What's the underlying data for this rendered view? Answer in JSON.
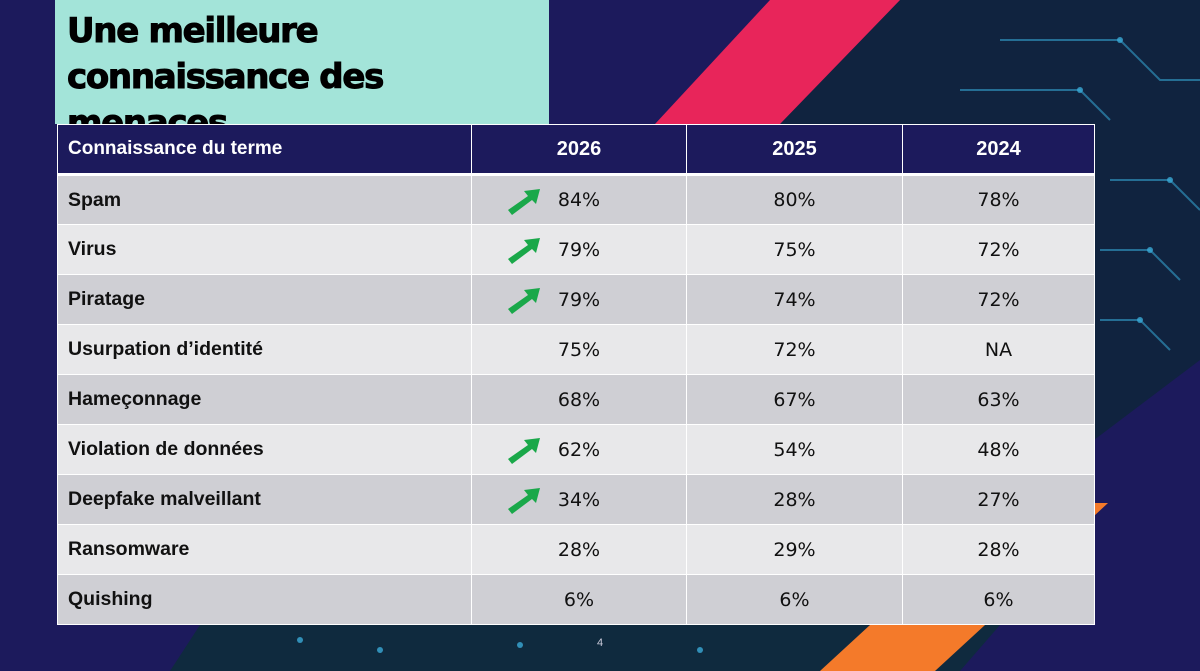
{
  "slide": {
    "title": "Une meilleure connaissance des menaces",
    "page_number": "4"
  },
  "table": {
    "headers": [
      "Connaissance du terme",
      "2026",
      "2025",
      "2024"
    ],
    "rows": [
      {
        "label": "Spam",
        "v2026": "84%",
        "v2025": "80%",
        "v2024": "78%",
        "trend_up": true
      },
      {
        "label": "Virus",
        "v2026": "79%",
        "v2025": "75%",
        "v2024": "72%",
        "trend_up": true
      },
      {
        "label": "Piratage",
        "v2026": "79%",
        "v2025": "74%",
        "v2024": "72%",
        "trend_up": true
      },
      {
        "label": "Usurpation d’identité",
        "v2026": "75%",
        "v2025": "72%",
        "v2024": "NA",
        "trend_up": false
      },
      {
        "label": "Hameçonnage",
        "v2026": "68%",
        "v2025": "67%",
        "v2024": "63%",
        "trend_up": false
      },
      {
        "label": "Violation de données",
        "v2026": "62%",
        "v2025": "54%",
        "v2024": "48%",
        "trend_up": true
      },
      {
        "label": "Deepfake malveillant",
        "v2026": "34%",
        "v2025": "28%",
        "v2024": "27%",
        "trend_up": true
      },
      {
        "label": "Ransomware",
        "v2026": "28%",
        "v2025": "29%",
        "v2024": "28%",
        "trend_up": false
      },
      {
        "label": "Quishing",
        "v2026": "6%",
        "v2025": "6%",
        "v2024": "6%",
        "trend_up": false
      }
    ]
  },
  "colors": {
    "background": "#1c1a5c",
    "title_box": "#a3e4d9",
    "accent_pink": "#e8255a",
    "accent_orange": "#f47a2a",
    "trend_arrow": "#1aa84a"
  },
  "icons": {
    "trend": "trend-up-arrow-icon"
  }
}
